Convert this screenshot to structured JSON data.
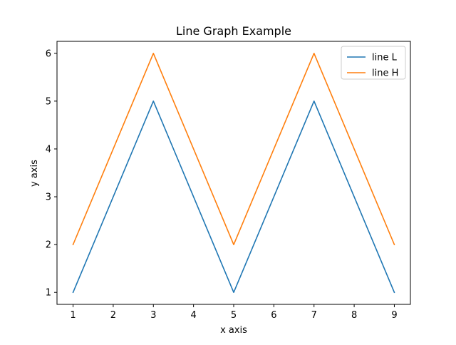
{
  "chart_data": {
    "type": "line",
    "title": "Line Graph Example",
    "xlabel": "x axis",
    "ylabel": "y axis",
    "x": [
      1,
      2,
      3,
      4,
      5,
      6,
      7,
      8,
      9
    ],
    "xlim": [
      0.6,
      9.4
    ],
    "ylim": [
      0.75,
      6.25
    ],
    "xticks": [
      1,
      2,
      3,
      4,
      5,
      6,
      7,
      8,
      9
    ],
    "yticks": [
      1,
      2,
      3,
      4,
      5,
      6
    ],
    "grid": false,
    "legend_position": "top-right",
    "series": [
      {
        "name": "line L",
        "color": "#1f77b4",
        "values": [
          1,
          3,
          5,
          3,
          1,
          3,
          5,
          3,
          1
        ]
      },
      {
        "name": "line H",
        "color": "#ff7f0e",
        "values": [
          2,
          4,
          6,
          4,
          2,
          4,
          6,
          4,
          2
        ]
      }
    ]
  }
}
